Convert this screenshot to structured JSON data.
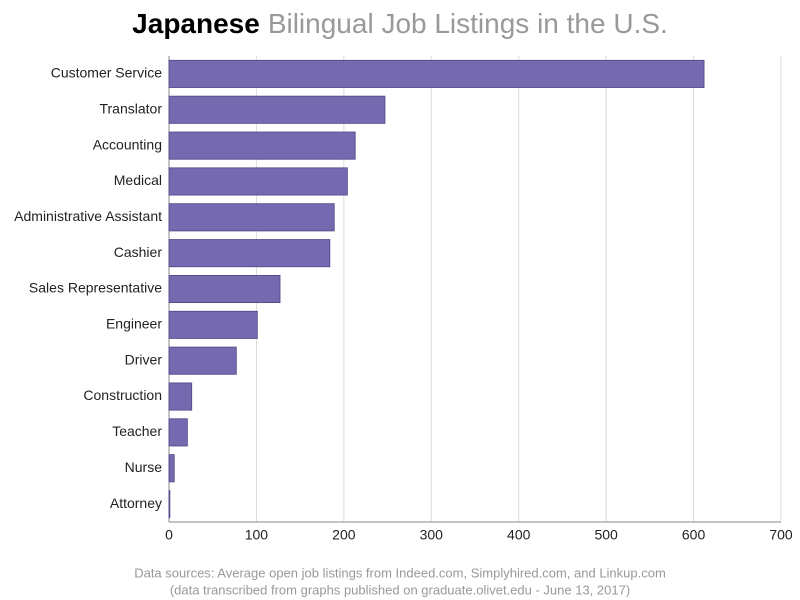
{
  "chart_data": {
    "type": "bar",
    "orientation": "horizontal",
    "title_highlight": "Japanese",
    "title": "Bilingual Job Listings in the U.S.",
    "footnotes": [
      "Data sources: Average open job listings from Indeed.com, Simplyhired.com, and Linkup.com",
      "(data transcribed from graphs published on graduate.olivet.edu - June 13, 2017)"
    ],
    "categories": [
      "Customer Service",
      "Translator",
      "Accounting",
      "Medical",
      "Administrative Assistant",
      "Cashier",
      "Sales Representative",
      "Engineer",
      "Driver",
      "Construction",
      "Teacher",
      "Nurse",
      "Attorney"
    ],
    "values": [
      612,
      247,
      213,
      204,
      189,
      184,
      127,
      101,
      77,
      26,
      21,
      6,
      1
    ],
    "color": "#7569b0",
    "xlim": [
      0,
      700
    ],
    "xticks": [
      0,
      100,
      200,
      300,
      400,
      500,
      600,
      700
    ],
    "grid": true
  }
}
